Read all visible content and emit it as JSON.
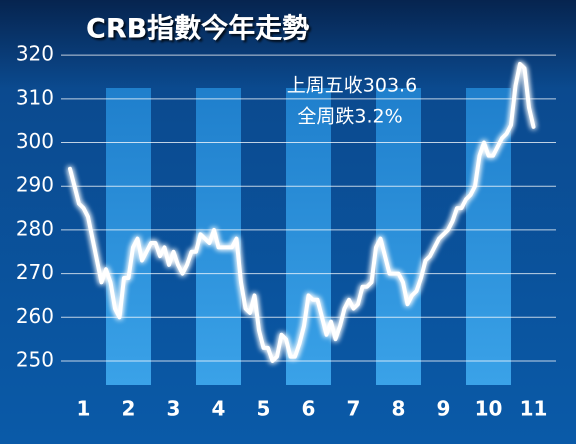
{
  "chart_data": {
    "type": "line",
    "title": "CRB指數今年走勢",
    "annotations": [
      "上周五收303.6",
      "全周跌3.2%"
    ],
    "x": [
      0.7,
      0.8,
      0.9,
      1.0,
      1.1,
      1.2,
      1.3,
      1.4,
      1.5,
      1.6,
      1.7,
      1.8,
      1.9,
      2.0,
      2.1,
      2.2,
      2.3,
      2.4,
      2.5,
      2.6,
      2.7,
      2.8,
      2.9,
      3.0,
      3.1,
      3.2,
      3.3,
      3.4,
      3.5,
      3.6,
      3.7,
      3.8,
      3.9,
      4.0,
      4.1,
      4.2,
      4.3,
      4.4,
      4.5,
      4.6,
      4.7,
      4.8,
      4.9,
      5.0,
      5.1,
      5.2,
      5.3,
      5.4,
      5.5,
      5.6,
      5.7,
      5.8,
      5.9,
      6.0,
      6.1,
      6.2,
      6.3,
      6.4,
      6.5,
      6.6,
      6.7,
      6.8,
      6.9,
      7.0,
      7.1,
      7.2,
      7.3,
      7.4,
      7.5,
      7.6,
      7.7,
      7.8,
      7.9,
      8.0,
      8.1,
      8.2,
      8.3,
      8.4,
      8.5,
      8.6,
      8.7,
      8.8,
      8.9,
      9.0,
      9.1,
      9.2,
      9.3,
      9.4,
      9.5,
      9.6,
      9.7,
      9.8,
      9.9,
      10.0,
      10.1,
      10.2,
      10.3,
      10.4,
      10.5,
      10.6,
      10.7,
      10.8,
      10.9,
      11.0
    ],
    "values": [
      294,
      290,
      286,
      285,
      283,
      278,
      273,
      268,
      271,
      268,
      262,
      260,
      269,
      269,
      276,
      278,
      273,
      275,
      277,
      277,
      274,
      276,
      272,
      275,
      272,
      270,
      272,
      275,
      275,
      279,
      278,
      277,
      280,
      276,
      276,
      276,
      276,
      278,
      268,
      262,
      261,
      265,
      257,
      253,
      253,
      250,
      251,
      256,
      255,
      251,
      251,
      254,
      258,
      265,
      264,
      264,
      260,
      256,
      259,
      255,
      258,
      262,
      264,
      262,
      263,
      267,
      267,
      268,
      276,
      278,
      274,
      270,
      270,
      270,
      268,
      263,
      265,
      266,
      269,
      273,
      274,
      276,
      278,
      279,
      280,
      282,
      285,
      285,
      287,
      288,
      290,
      297,
      300,
      297,
      297,
      299,
      301,
      302,
      304,
      313,
      318,
      317,
      308,
      303.6
    ],
    "color": "#ffffff",
    "xlim": [
      0.5,
      11.5
    ],
    "xticks": [
      1,
      2,
      3,
      4,
      5,
      6,
      7,
      8,
      9,
      10,
      11
    ],
    "ylim": [
      244.5,
      322.1
    ],
    "yticks": [
      250,
      260,
      270,
      280,
      290,
      300,
      310,
      320
    ],
    "grid": true
  }
}
